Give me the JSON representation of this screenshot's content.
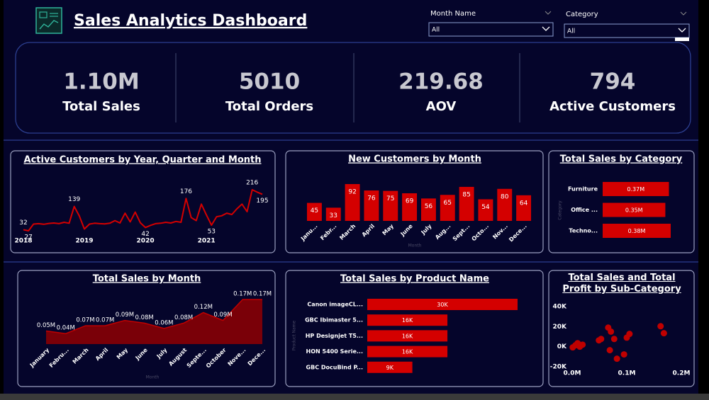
{
  "header": {
    "title": "Sales Analytics Dashboard"
  },
  "filters": [
    {
      "label": "Month Name",
      "value": "All"
    },
    {
      "label": "Category",
      "value": "All"
    }
  ],
  "kpis": [
    {
      "value": "1.10M",
      "label": "Total Sales"
    },
    {
      "value": "5010",
      "label": "Total Orders"
    },
    {
      "value": "219.68",
      "label": "AOV"
    },
    {
      "value": "794",
      "label": "Active Customers"
    }
  ],
  "chart_data": [
    {
      "type": "line",
      "title": "Active Customers by Year, Quarter and Month",
      "color": "#d40000",
      "categories": [
        "2018",
        null,
        null,
        null,
        null,
        null,
        null,
        null,
        null,
        null,
        null,
        null,
        "2019",
        null,
        null,
        null,
        null,
        null,
        null,
        null,
        null,
        null,
        null,
        null,
        "2020",
        null,
        null,
        null,
        null,
        null,
        null,
        null,
        null,
        null,
        null,
        null,
        "2021",
        null,
        null,
        null,
        null,
        null,
        null,
        null,
        null,
        null,
        null,
        null
      ],
      "values": [
        32,
        27,
        58,
        60,
        57,
        61,
        63,
        60,
        66,
        62,
        139,
        95,
        35,
        58,
        62,
        60,
        59,
        62,
        74,
        63,
        108,
        68,
        113,
        64,
        42,
        52,
        60,
        62,
        66,
        63,
        70,
        66,
        176,
        88,
        74,
        150,
        100,
        53,
        92,
        96,
        108,
        102,
        128,
        150,
        115,
        216,
        205,
        195
      ],
      "value_labels": [
        "32",
        "27",
        null,
        null,
        null,
        null,
        null,
        null,
        null,
        null,
        "139",
        null,
        null,
        null,
        null,
        null,
        null,
        null,
        null,
        null,
        null,
        null,
        null,
        null,
        "42",
        null,
        null,
        null,
        null,
        null,
        null,
        null,
        "176",
        null,
        null,
        null,
        null,
        "53",
        null,
        null,
        null,
        null,
        null,
        null,
        null,
        "216",
        null,
        "195"
      ]
    },
    {
      "type": "bar",
      "title": "New Customers by Month",
      "color": "#d40000",
      "x_label": "Month",
      "categories": [
        "Janu...",
        "Febr...",
        "March",
        "April",
        "May",
        "June",
        "July",
        "Aug...",
        "Sept...",
        "Octo...",
        "Nov...",
        "Dece..."
      ],
      "values": [
        45,
        33,
        92,
        76,
        75,
        69,
        56,
        65,
        85,
        54,
        80,
        64
      ]
    },
    {
      "type": "bar",
      "horizontal": true,
      "title": "Total Sales by Category",
      "color": "#d40000",
      "y_label": "Category",
      "categories": [
        "Furniture",
        "Office ...",
        "Techno..."
      ],
      "values": [
        0.37,
        0.35,
        0.38
      ],
      "value_labels": [
        "0.37M",
        "0.35M",
        "0.38M"
      ]
    },
    {
      "type": "area",
      "title": "Total Sales by Month",
      "color": "#c00000",
      "x_label": "Month",
      "categories": [
        "January",
        "Febru...",
        "March",
        "April",
        "May",
        "June",
        "July",
        "August",
        "Septe...",
        "October",
        "Nove...",
        "Dece..."
      ],
      "values": [
        0.05,
        0.04,
        0.07,
        0.07,
        0.09,
        0.08,
        0.06,
        0.08,
        0.12,
        0.09,
        0.17,
        0.17
      ],
      "value_labels": [
        "0.05M",
        "0.04M",
        "0.07M",
        "0.07M",
        "0.09M",
        "0.08M",
        "0.06M",
        "0.08M",
        "0.12M",
        "0.09M",
        "0.17M",
        "0.17M"
      ]
    },
    {
      "type": "bar",
      "horizontal": true,
      "title": "Total Sales by Product Name",
      "color": "#d40000",
      "y_label": "Product Name",
      "categories": [
        "Canon imageCL...",
        "GBC Ibimaster 5...",
        "HP Designjet T5...",
        "HON 5400 Serie...",
        "GBC DocuBind P..."
      ],
      "values": [
        30,
        16,
        16,
        16,
        9
      ],
      "value_labels": [
        "30K",
        "16K",
        "16K",
        "16K",
        "9K"
      ]
    },
    {
      "type": "scatter",
      "title": "Total Sales and Total Profit by Sub-Category",
      "color": "#c00000",
      "x": [
        0.006,
        0.01,
        0.014,
        0.019,
        0.001,
        0.049,
        0.053,
        0.066,
        0.071,
        0.077,
        0.1,
        0.105,
        0.069,
        0.095,
        0.162,
        0.168,
        0.082
      ],
      "values": [
        1.4,
        3.5,
        0,
        2,
        -0.7,
        6.3,
        7.7,
        19,
        15,
        7.7,
        9,
        12.7,
        -3.5,
        -7.7,
        20.4,
        13.4,
        -12
      ],
      "xlim": [
        0,
        0.2
      ],
      "xticks": [
        {
          "value": 0,
          "label": "0.0M"
        },
        {
          "value": 0.1,
          "label": "0.1M"
        },
        {
          "value": 0.2,
          "label": "0.2M"
        }
      ],
      "ylim": [
        -20,
        40
      ],
      "yticks": [
        {
          "value": -20,
          "label": "-20K"
        },
        {
          "value": 0,
          "label": "0K"
        },
        {
          "value": 20,
          "label": "20K"
        },
        {
          "value": 40,
          "label": "40K"
        }
      ]
    }
  ]
}
